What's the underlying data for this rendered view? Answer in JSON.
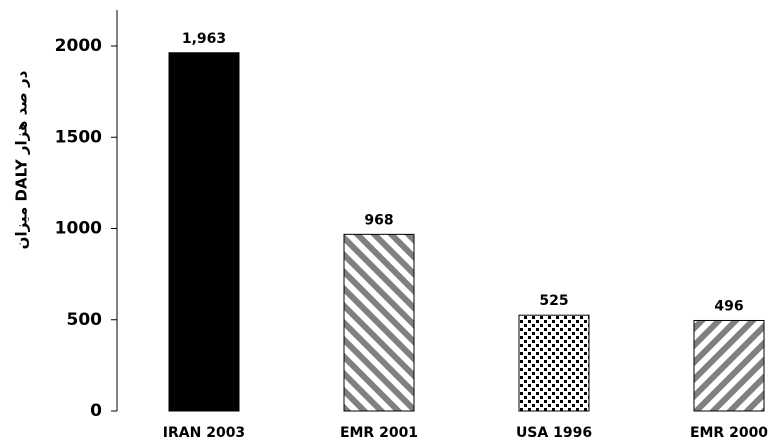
{
  "chart_data": {
    "type": "bar",
    "categories": [
      "IRAN 2003",
      "EMR 2001",
      "USA 1996",
      "EMR 2000"
    ],
    "values": [
      1963,
      968,
      525,
      496
    ],
    "data_labels": [
      "1,963",
      "968",
      "525",
      "496"
    ],
    "bar_patterns": [
      "solid-black",
      "diagonal-stripes-down",
      "dots",
      "diagonal-stripes-up"
    ],
    "ylabel": "میزان DALY در صد هزار",
    "ylim": [
      0,
      2000
    ],
    "yticks": [
      0,
      500,
      1000,
      1500,
      2000
    ],
    "ytick_labels": [
      "0",
      "500",
      "1000",
      "1500",
      "2000"
    ],
    "grid": false,
    "legend": "none",
    "colors": {
      "bar_fill": "#000000",
      "stripe": "#808080",
      "background": "#ffffff"
    }
  }
}
